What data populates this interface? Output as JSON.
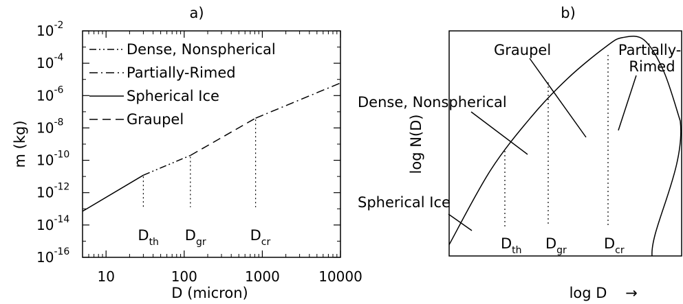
{
  "chart_data": [
    {
      "type": "line",
      "panel_label": "a)",
      "xlabel": "D (micron)",
      "ylabel": "m (kg)",
      "xscale": "log",
      "yscale": "log",
      "xlim": [
        5,
        10000
      ],
      "ylim": [
        1e-16,
        0.01
      ],
      "x_ticks": [
        {
          "value": 10,
          "label": "10"
        },
        {
          "value": 100,
          "label": "100"
        },
        {
          "value": 1000,
          "label": "1000"
        },
        {
          "value": 10000,
          "label": "10000"
        }
      ],
      "y_ticks": [
        {
          "value": 0.01,
          "base": "10",
          "exp": "-2"
        },
        {
          "value": 0.0001,
          "base": "10",
          "exp": "-4"
        },
        {
          "value": 1e-06,
          "base": "10",
          "exp": "-6"
        },
        {
          "value": 1e-08,
          "base": "10",
          "exp": "-8"
        },
        {
          "value": 1e-10,
          "base": "10",
          "exp": "-10"
        },
        {
          "value": 1e-12,
          "base": "10",
          "exp": "-12"
        },
        {
          "value": 1e-14,
          "base": "10",
          "exp": "-14"
        },
        {
          "value": 1e-16,
          "base": "10",
          "exp": "-16"
        }
      ],
      "legend_position": "top-left",
      "series": [
        {
          "name": "Dense, Nonspherical",
          "dash": "dash-dot-dot",
          "x": [
            30,
            120
          ],
          "y": [
            1.2e-11,
            2e-10
          ]
        },
        {
          "name": "Partially-Rimed",
          "dash": "dash-dot",
          "x": [
            820,
            10000
          ],
          "y": [
            4e-08,
            6e-06
          ]
        },
        {
          "name": "Spherical Ice",
          "dash": "solid",
          "x": [
            5,
            30
          ],
          "y": [
            7e-14,
            1.2e-11
          ]
        },
        {
          "name": "Graupel",
          "dash": "dashed",
          "x": [
            120,
            820
          ],
          "y": [
            2e-10,
            4e-08
          ]
        }
      ],
      "thresholds": [
        {
          "value": 30,
          "label": "D",
          "sub": "th",
          "m_top": 1.2e-11
        },
        {
          "value": 120,
          "label": "D",
          "sub": "gr",
          "m_top": 2e-10
        },
        {
          "value": 820,
          "label": "D",
          "sub": "cr",
          "m_top": 4e-08
        }
      ],
      "grid": false
    },
    {
      "type": "line",
      "panel_label": "b)",
      "xlabel": "log D",
      "xlabel_arrow": "→",
      "ylabel": "log N(D)",
      "series": [
        {
          "name": "N(D)",
          "x": [
            0,
            0.25,
            0.5,
            0.72,
            0.95,
            1.05,
            1.18,
            1.3,
            1.4
          ],
          "y": [
            0.05,
            0.38,
            0.62,
            0.79,
            0.93,
            0.97,
            0.96,
            0.82,
            0.6
          ]
        }
      ],
      "thresholds": [
        {
          "label": "D",
          "sub": "th"
        },
        {
          "label": "D",
          "sub": "gr"
        },
        {
          "label": "D",
          "sub": "cr"
        }
      ],
      "annotations": [
        "Graupel",
        "Partially-Rimed",
        "Dense, Nonspherical",
        "Spherical Ice"
      ],
      "annotation_lines": [
        "Partially-",
        "Rimed"
      ]
    }
  ]
}
